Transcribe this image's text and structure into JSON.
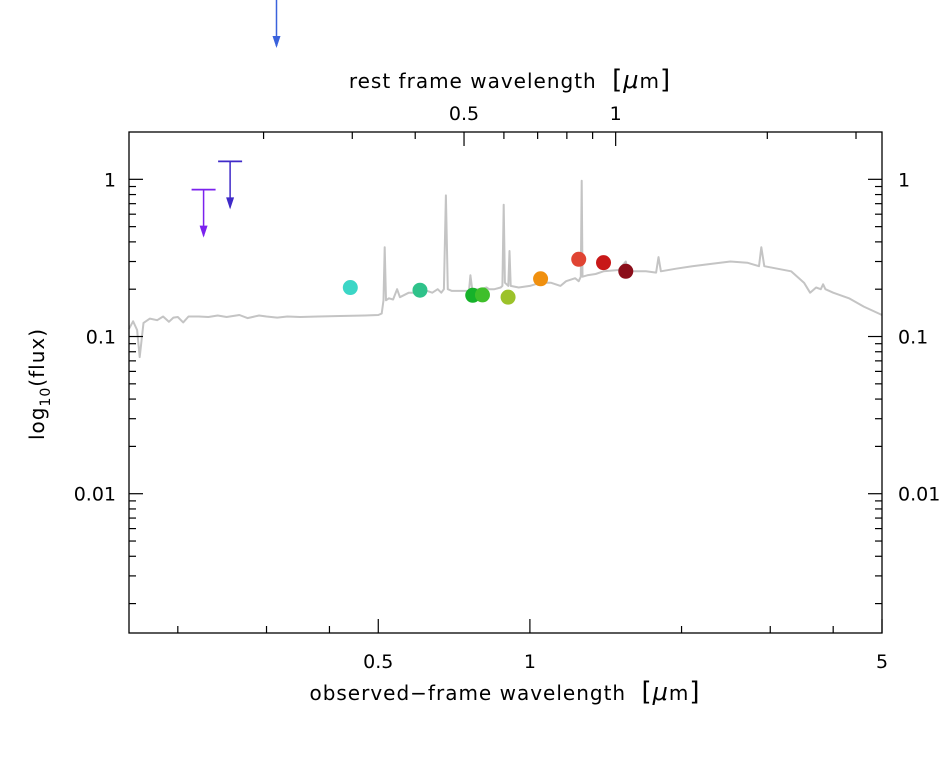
{
  "chart_data": {
    "type": "scatter",
    "xlabel_prefix": "observed−frame wavelength",
    "top_xlabel_prefix": "rest frame wavelength",
    "unit_open": "[",
    "unit_mu": "μ",
    "unit_m": "m",
    "unit_close": "]",
    "ylabel": {
      "base": "log",
      "sub": "10",
      "rest": "(flux)"
    },
    "x_scale": "log",
    "y_scale": "log",
    "xlim": [
      0.16,
      5.0
    ],
    "ylim": [
      0.0013,
      2.0
    ],
    "top_axis_factor": 0.6757,
    "x_ticks": [
      {
        "v": 0.5,
        "label": "0.5"
      },
      {
        "v": 1,
        "label": "1"
      },
      {
        "v": 5,
        "label": "5"
      }
    ],
    "x_minor_ticks": [
      0.2,
      0.3,
      0.4,
      2,
      3,
      4
    ],
    "top_ticks": [
      {
        "v": 0.5,
        "label": "0.5"
      },
      {
        "v": 1,
        "label": "1"
      }
    ],
    "top_minor_ticks": [
      0.2,
      0.3,
      0.4,
      0.6,
      0.7,
      0.8,
      0.9,
      2,
      3
    ],
    "y_ticks": [
      {
        "v": 1,
        "label": "1"
      },
      {
        "v": 0.1,
        "label": "0.1"
      },
      {
        "v": 0.01,
        "label": "0.01"
      }
    ],
    "template_color": "#c4c4c4",
    "points": [
      {
        "x": 0.44,
        "y": 0.205,
        "color": "#3bd6c6"
      },
      {
        "x": 0.605,
        "y": 0.197,
        "color": "#2fc28a"
      },
      {
        "x": 0.77,
        "y": 0.183,
        "color": "#16b22a"
      },
      {
        "x": 0.805,
        "y": 0.184,
        "color": "#3fbf2a"
      },
      {
        "x": 0.905,
        "y": 0.178,
        "color": "#9cc22a"
      },
      {
        "x": 1.05,
        "y": 0.233,
        "color": "#f0900f"
      },
      {
        "x": 1.25,
        "y": 0.31,
        "color": "#e04433"
      },
      {
        "x": 1.4,
        "y": 0.295,
        "color": "#c81818"
      },
      {
        "x": 1.55,
        "y": 0.26,
        "color": "#8b0e1a"
      }
    ],
    "upper_limits": [
      {
        "x": 0.225,
        "y": 0.86,
        "color": "#7b22ee"
      },
      {
        "x": 0.254,
        "y": 1.3,
        "color": "#3f2ac8"
      }
    ],
    "offscale_limits": [
      {
        "x": 0.314,
        "color": "#3a62dc"
      }
    ],
    "template_spectrum": [
      [
        0.16,
        0.112
      ],
      [
        0.163,
        0.125
      ],
      [
        0.166,
        0.11
      ],
      [
        0.168,
        0.074
      ],
      [
        0.171,
        0.122
      ],
      [
        0.176,
        0.13
      ],
      [
        0.182,
        0.127
      ],
      [
        0.187,
        0.134
      ],
      [
        0.192,
        0.124
      ],
      [
        0.196,
        0.132
      ],
      [
        0.2,
        0.133
      ],
      [
        0.205,
        0.123
      ],
      [
        0.21,
        0.134
      ],
      [
        0.22,
        0.134
      ],
      [
        0.23,
        0.133
      ],
      [
        0.24,
        0.136
      ],
      [
        0.25,
        0.133
      ],
      [
        0.265,
        0.137
      ],
      [
        0.275,
        0.131
      ],
      [
        0.29,
        0.136
      ],
      [
        0.3,
        0.134
      ],
      [
        0.315,
        0.132
      ],
      [
        0.33,
        0.134
      ],
      [
        0.35,
        0.133
      ],
      [
        0.38,
        0.134
      ],
      [
        0.42,
        0.135
      ],
      [
        0.47,
        0.136
      ],
      [
        0.5,
        0.137
      ],
      [
        0.508,
        0.14
      ],
      [
        0.512,
        0.17
      ],
      [
        0.515,
        0.37
      ],
      [
        0.518,
        0.17
      ],
      [
        0.525,
        0.175
      ],
      [
        0.535,
        0.172
      ],
      [
        0.545,
        0.2
      ],
      [
        0.552,
        0.178
      ],
      [
        0.575,
        0.19
      ],
      [
        0.6,
        0.19
      ],
      [
        0.625,
        0.195
      ],
      [
        0.64,
        0.19
      ],
      [
        0.656,
        0.2
      ],
      [
        0.667,
        0.19
      ],
      [
        0.675,
        0.2
      ],
      [
        0.681,
        0.79
      ],
      [
        0.687,
        0.2
      ],
      [
        0.7,
        0.195
      ],
      [
        0.74,
        0.195
      ],
      [
        0.757,
        0.195
      ],
      [
        0.762,
        0.245
      ],
      [
        0.768,
        0.2
      ],
      [
        0.8,
        0.2
      ],
      [
        0.82,
        0.205
      ],
      [
        0.83,
        0.2
      ],
      [
        0.85,
        0.2
      ],
      [
        0.875,
        0.205
      ],
      [
        0.882,
        0.21
      ],
      [
        0.887,
        0.69
      ],
      [
        0.892,
        0.22
      ],
      [
        0.906,
        0.21
      ],
      [
        0.911,
        0.35
      ],
      [
        0.916,
        0.21
      ],
      [
        0.95,
        0.205
      ],
      [
        1.0,
        0.21
      ],
      [
        1.05,
        0.22
      ],
      [
        1.1,
        0.22
      ],
      [
        1.15,
        0.21
      ],
      [
        1.18,
        0.225
      ],
      [
        1.23,
        0.235
      ],
      [
        1.25,
        0.225
      ],
      [
        1.262,
        0.24
      ],
      [
        1.267,
        0.98
      ],
      [
        1.272,
        0.24
      ],
      [
        1.3,
        0.245
      ],
      [
        1.35,
        0.25
      ],
      [
        1.4,
        0.26
      ],
      [
        1.5,
        0.265
      ],
      [
        1.55,
        0.3
      ],
      [
        1.565,
        0.26
      ],
      [
        1.65,
        0.26
      ],
      [
        1.7,
        0.26
      ],
      [
        1.78,
        0.255
      ],
      [
        1.8,
        0.32
      ],
      [
        1.82,
        0.26
      ],
      [
        1.95,
        0.27
      ],
      [
        2.1,
        0.28
      ],
      [
        2.3,
        0.29
      ],
      [
        2.5,
        0.3
      ],
      [
        2.7,
        0.295
      ],
      [
        2.85,
        0.28
      ],
      [
        2.88,
        0.37
      ],
      [
        2.92,
        0.28
      ],
      [
        3.1,
        0.27
      ],
      [
        3.3,
        0.26
      ],
      [
        3.5,
        0.22
      ],
      [
        3.6,
        0.19
      ],
      [
        3.7,
        0.205
      ],
      [
        3.78,
        0.2
      ],
      [
        3.82,
        0.215
      ],
      [
        3.86,
        0.2
      ],
      [
        4.0,
        0.19
      ],
      [
        4.3,
        0.175
      ],
      [
        4.6,
        0.155
      ],
      [
        5.0,
        0.137
      ]
    ]
  }
}
